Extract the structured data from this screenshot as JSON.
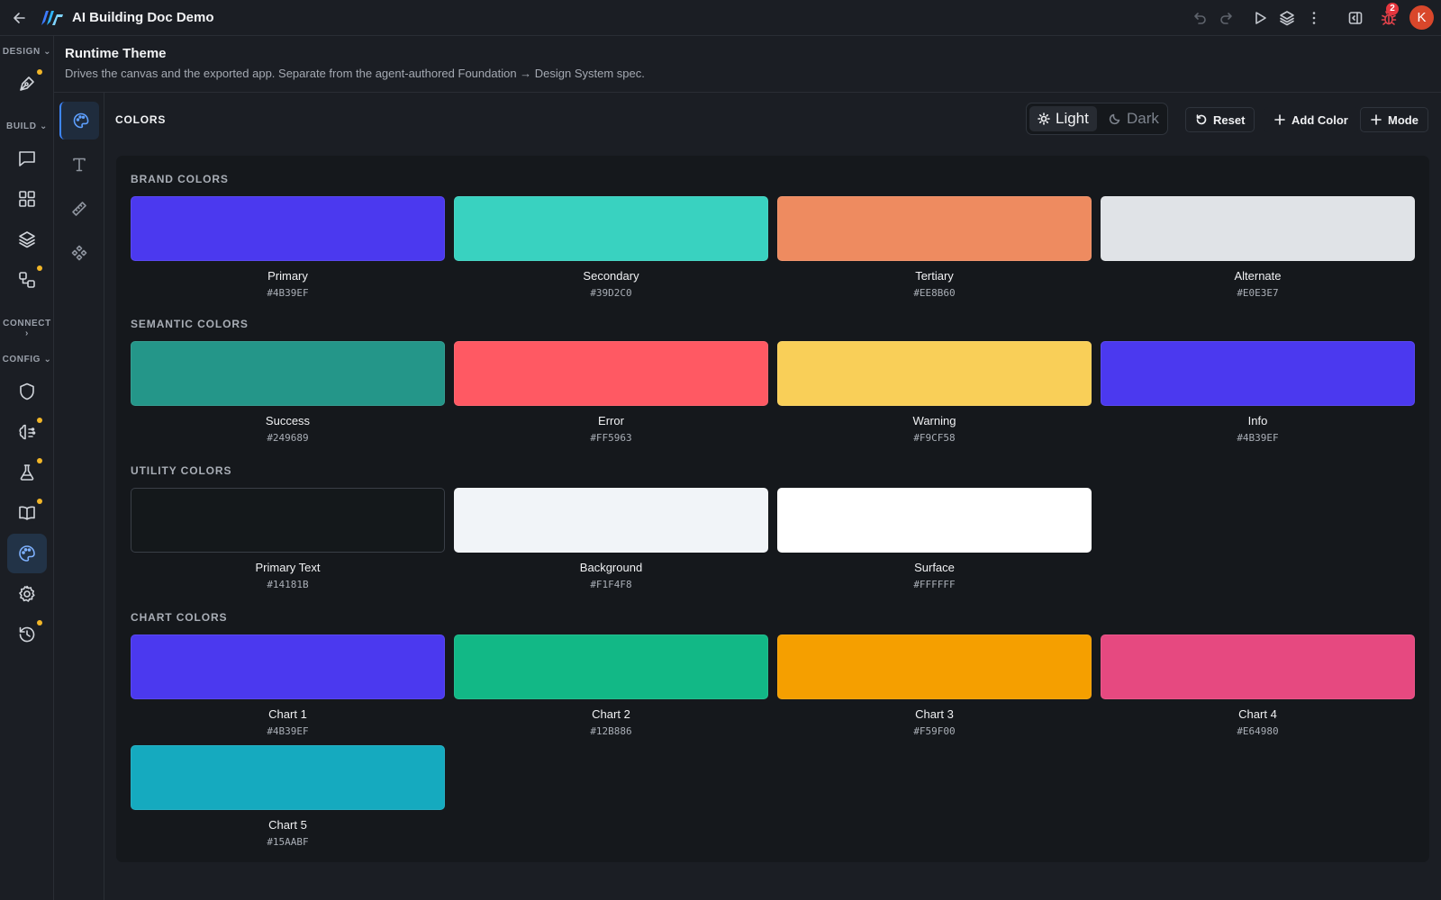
{
  "app": {
    "title": "AI Building Doc Demo",
    "user_initial": "K",
    "bug_count": "2"
  },
  "rail": {
    "sections": {
      "design": "DESIGN",
      "build": "BUILD",
      "connect": "CONNECT",
      "config": "CONFIG"
    }
  },
  "page": {
    "title": "Runtime Theme",
    "subtitle": "Drives the canvas and the exported app. Separate from the agent-authored Foundation → Design System spec."
  },
  "toolbar": {
    "section_label": "COLORS",
    "light_label": "Light",
    "dark_label": "Dark",
    "reset_label": "Reset",
    "add_color_label": "Add Color",
    "mode_label": "Mode"
  },
  "groups": [
    {
      "label": "BRAND COLORS",
      "colors": [
        {
          "name": "Primary",
          "hex": "#4B39EF"
        },
        {
          "name": "Secondary",
          "hex": "#39D2C0"
        },
        {
          "name": "Tertiary",
          "hex": "#EE8B60"
        },
        {
          "name": "Alternate",
          "hex": "#E0E3E7"
        }
      ]
    },
    {
      "label": "SEMANTIC COLORS",
      "colors": [
        {
          "name": "Success",
          "hex": "#249689"
        },
        {
          "name": "Error",
          "hex": "#FF5963"
        },
        {
          "name": "Warning",
          "hex": "#F9CF58"
        },
        {
          "name": "Info",
          "hex": "#4B39EF"
        }
      ]
    },
    {
      "label": "UTILITY COLORS",
      "colors": [
        {
          "name": "Primary Text",
          "hex": "#14181B"
        },
        {
          "name": "Background",
          "hex": "#F1F4F8"
        },
        {
          "name": "Surface",
          "hex": "#FFFFFF"
        }
      ]
    },
    {
      "label": "CHART COLORS",
      "colors": [
        {
          "name": "Chart 1",
          "hex": "#4B39EF"
        },
        {
          "name": "Chart 2",
          "hex": "#12B886"
        },
        {
          "name": "Chart 3",
          "hex": "#F59F00"
        },
        {
          "name": "Chart 4",
          "hex": "#E64980"
        },
        {
          "name": "Chart 5",
          "hex": "#15AABF"
        }
      ]
    }
  ],
  "colors": {
    "accent": "#3D86FF",
    "notification_dot": "#F2B628",
    "badge": "#E5363E",
    "avatar": "#D9472B"
  }
}
